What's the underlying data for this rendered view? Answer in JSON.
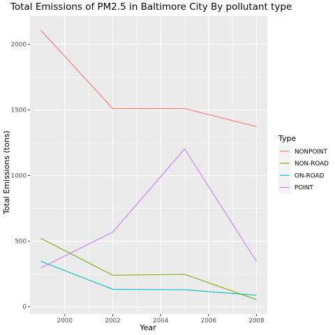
{
  "chart_data": {
    "type": "line",
    "title": "Total Emissions of PM2.5 in Baltimore City By pollutant type",
    "xlabel": "Year",
    "ylabel": "Total Emissions (tons)",
    "x": [
      1999,
      2002,
      2005,
      2008
    ],
    "xticks": [
      2000,
      2002,
      2004,
      2006,
      2008
    ],
    "xtick_labels": [
      "2000",
      "2002",
      "2004",
      "2006",
      "2008"
    ],
    "xlim": [
      1998.55,
      2008.45
    ],
    "yticks": [
      0,
      500,
      1000,
      1500,
      2000
    ],
    "ytick_labels": [
      "0",
      "500",
      "1000",
      "1500",
      "2000"
    ],
    "ylim": [
      -55,
      2215
    ],
    "grid": true,
    "legend": {
      "title": "Type",
      "placement": "right"
    },
    "series": [
      {
        "name": "NONPOINT",
        "color": "#F8766D",
        "values": [
          2107,
          1510,
          1510,
          1373
        ]
      },
      {
        "name": "NON-ROAD",
        "color": "#7CAE00",
        "values": [
          522,
          241,
          248,
          55
        ]
      },
      {
        "name": "ON-ROAD",
        "color": "#00BFC4",
        "values": [
          347,
          134,
          130,
          88
        ]
      },
      {
        "name": "POINT",
        "color": "#C77CFF",
        "values": [
          297,
          569,
          1203,
          345
        ]
      }
    ]
  }
}
